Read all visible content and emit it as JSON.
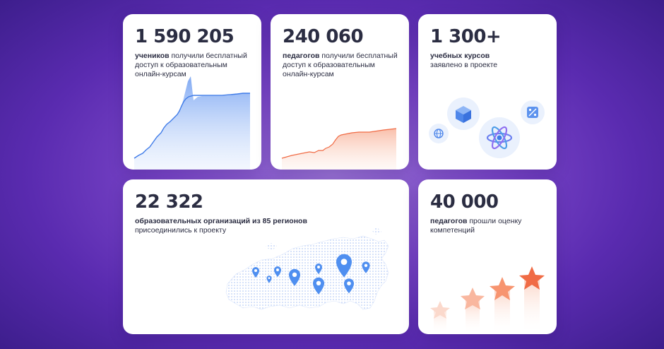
{
  "cards": {
    "students": {
      "number": "1 590 205",
      "bold": "учеников",
      "text": " получили бесплатный доступ к образовательным онлайн-курсам"
    },
    "teachers": {
      "number": "240 060",
      "bold": "педагогов",
      "text": " получили бесплатный доступ к образовательным онлайн-курсам"
    },
    "courses": {
      "number": "1 300+",
      "bold": "учебных курсов",
      "text": "заявлено в проекте"
    },
    "organizations": {
      "number": "22 322",
      "bold": "образовательных организаций из 85 регионов",
      "text": "присоединились к проекту"
    },
    "assessment": {
      "number": "40 000",
      "bold": "педагогов",
      "text": " прошли оценку компетенций"
    }
  },
  "icons": {
    "courses": [
      "cube-icon",
      "percent-icon",
      "globe-icon",
      "atom-icon"
    ],
    "map": "russia-map",
    "pins": "location-pin-icon",
    "stars": "star-icon"
  },
  "colors": {
    "blue_accent": "#3f7be8",
    "orange_accent": "#f06b45",
    "text": "#2b2d42",
    "background": "#6a37c0"
  }
}
